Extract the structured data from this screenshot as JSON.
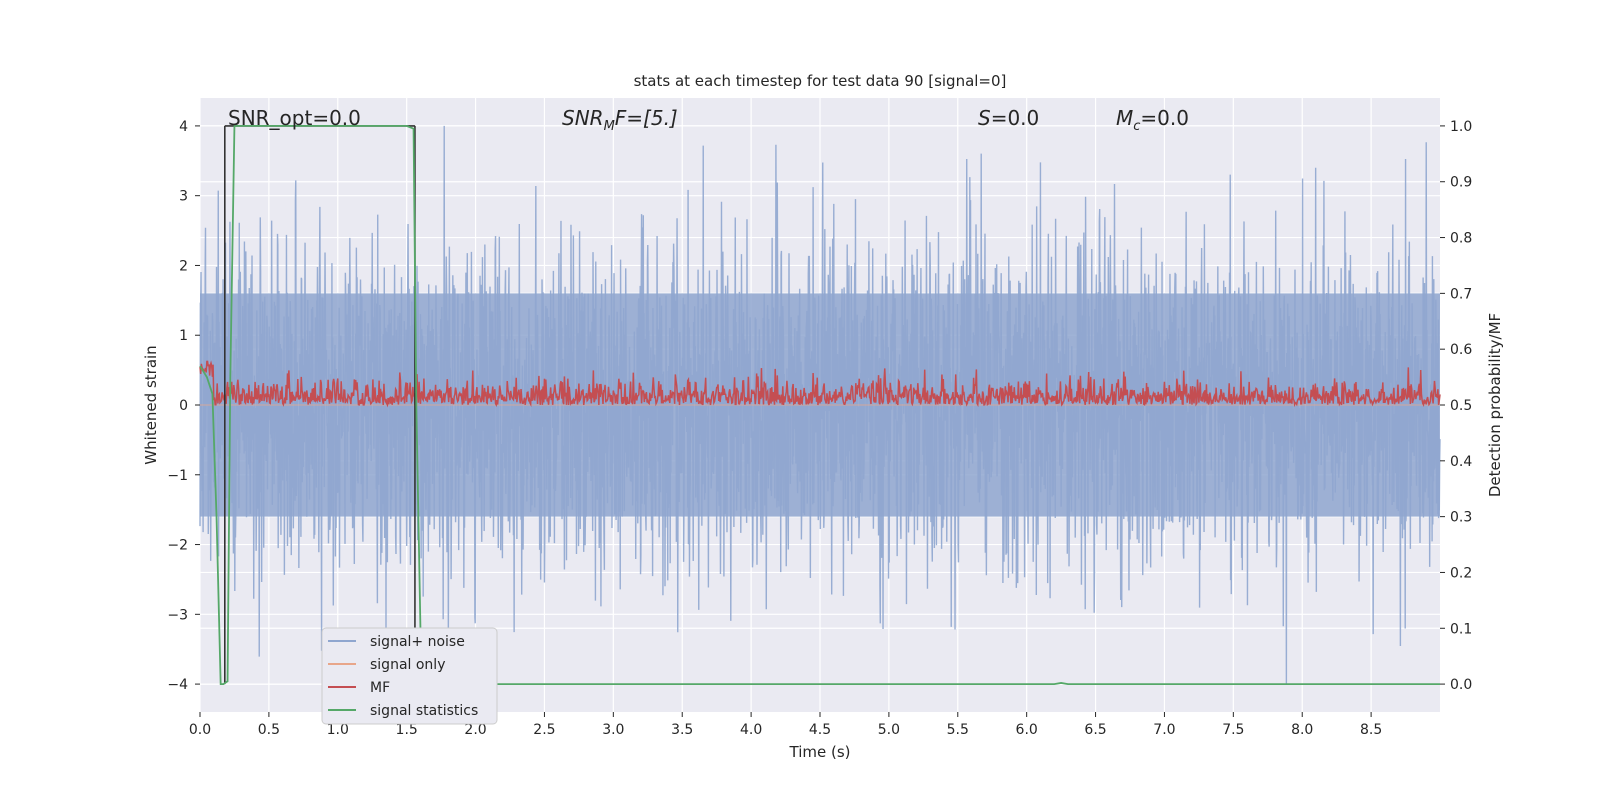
{
  "chart_data": {
    "type": "line",
    "title": "stats at each timestep for test data 90 [signal=0]",
    "xlabel": "Time (s)",
    "ylabel_left": "Whitened strain",
    "ylabel_right": "Detection probability/MF",
    "xlim": [
      0.0,
      9.0
    ],
    "ylim_left": [
      -4.4,
      4.4
    ],
    "ylim_right": [
      -0.05,
      1.05
    ],
    "x_ticks": [
      "0.0",
      "0.5",
      "1.0",
      "1.5",
      "2.0",
      "2.5",
      "3.0",
      "3.5",
      "4.0",
      "4.5",
      "5.0",
      "5.5",
      "6.0",
      "6.5",
      "7.0",
      "7.5",
      "8.0",
      "8.5"
    ],
    "y_ticks_left": [
      "4",
      "3",
      "2",
      "1",
      "0",
      "−1",
      "−2",
      "−3",
      "−4"
    ],
    "y_ticks_right": [
      "1.0",
      "0.9",
      "0.8",
      "0.7",
      "0.6",
      "0.5",
      "0.4",
      "0.3",
      "0.2",
      "0.1",
      "0.0"
    ],
    "grid": true,
    "legend_position": "lower-left",
    "annotations": {
      "snr_opt": "SNR_opt=0.0",
      "snr_mf_main": "SNR",
      "snr_mf_sub": "M",
      "snr_mf_rest": "F=[5.]",
      "s_main": "S",
      "s_rest": "=0.0",
      "mc_main": "M",
      "mc_sub": "c",
      "mc_rest": "=0.0"
    },
    "series": [
      {
        "name": "signal+ noise",
        "color": "#8fa6cf",
        "axis": "left",
        "description_values": "whitened noise spanning roughly −4 to 4 around 0"
      },
      {
        "name": "signal only",
        "color": "#e8a68a",
        "axis": "left",
        "values_constant": 0.0
      },
      {
        "name": "MF",
        "color": "#c44e52",
        "axis": "right",
        "range": [
          0.5,
          0.6
        ]
      },
      {
        "name": "signal statistics",
        "color": "#55a868",
        "axis": "right",
        "x": [
          0.0,
          0.05,
          0.09,
          0.12,
          0.15,
          0.17,
          0.2,
          0.22,
          0.25,
          0.3,
          0.5,
          1.0,
          1.5,
          1.55,
          1.57,
          1.6,
          1.63,
          2.0,
          6.2,
          6.25,
          6.3,
          9.0
        ],
        "values": [
          0.57,
          0.55,
          0.52,
          0.3,
          0.0,
          0.0,
          0.005,
          0.55,
          1.0,
          1.0,
          1.0,
          1.0,
          1.0,
          0.995,
          0.5,
          0.1,
          0.0,
          0.0,
          0.0,
          0.002,
          0.0,
          0.0
        ]
      },
      {
        "name": "",
        "color": "#333333",
        "axis": "right",
        "x": [
          0.18,
          0.18,
          0.18,
          1.56,
          1.56
        ],
        "values": [
          0.0,
          1.0,
          1.0,
          1.0,
          0.0
        ]
      }
    ],
    "legend": [
      {
        "label": "signal+ noise",
        "color": "#8fa6cf"
      },
      {
        "label": "signal only",
        "color": "#e8a68a"
      },
      {
        "label": "MF",
        "color": "#c44e52"
      },
      {
        "label": "signal statistics",
        "color": "#55a868"
      }
    ]
  }
}
